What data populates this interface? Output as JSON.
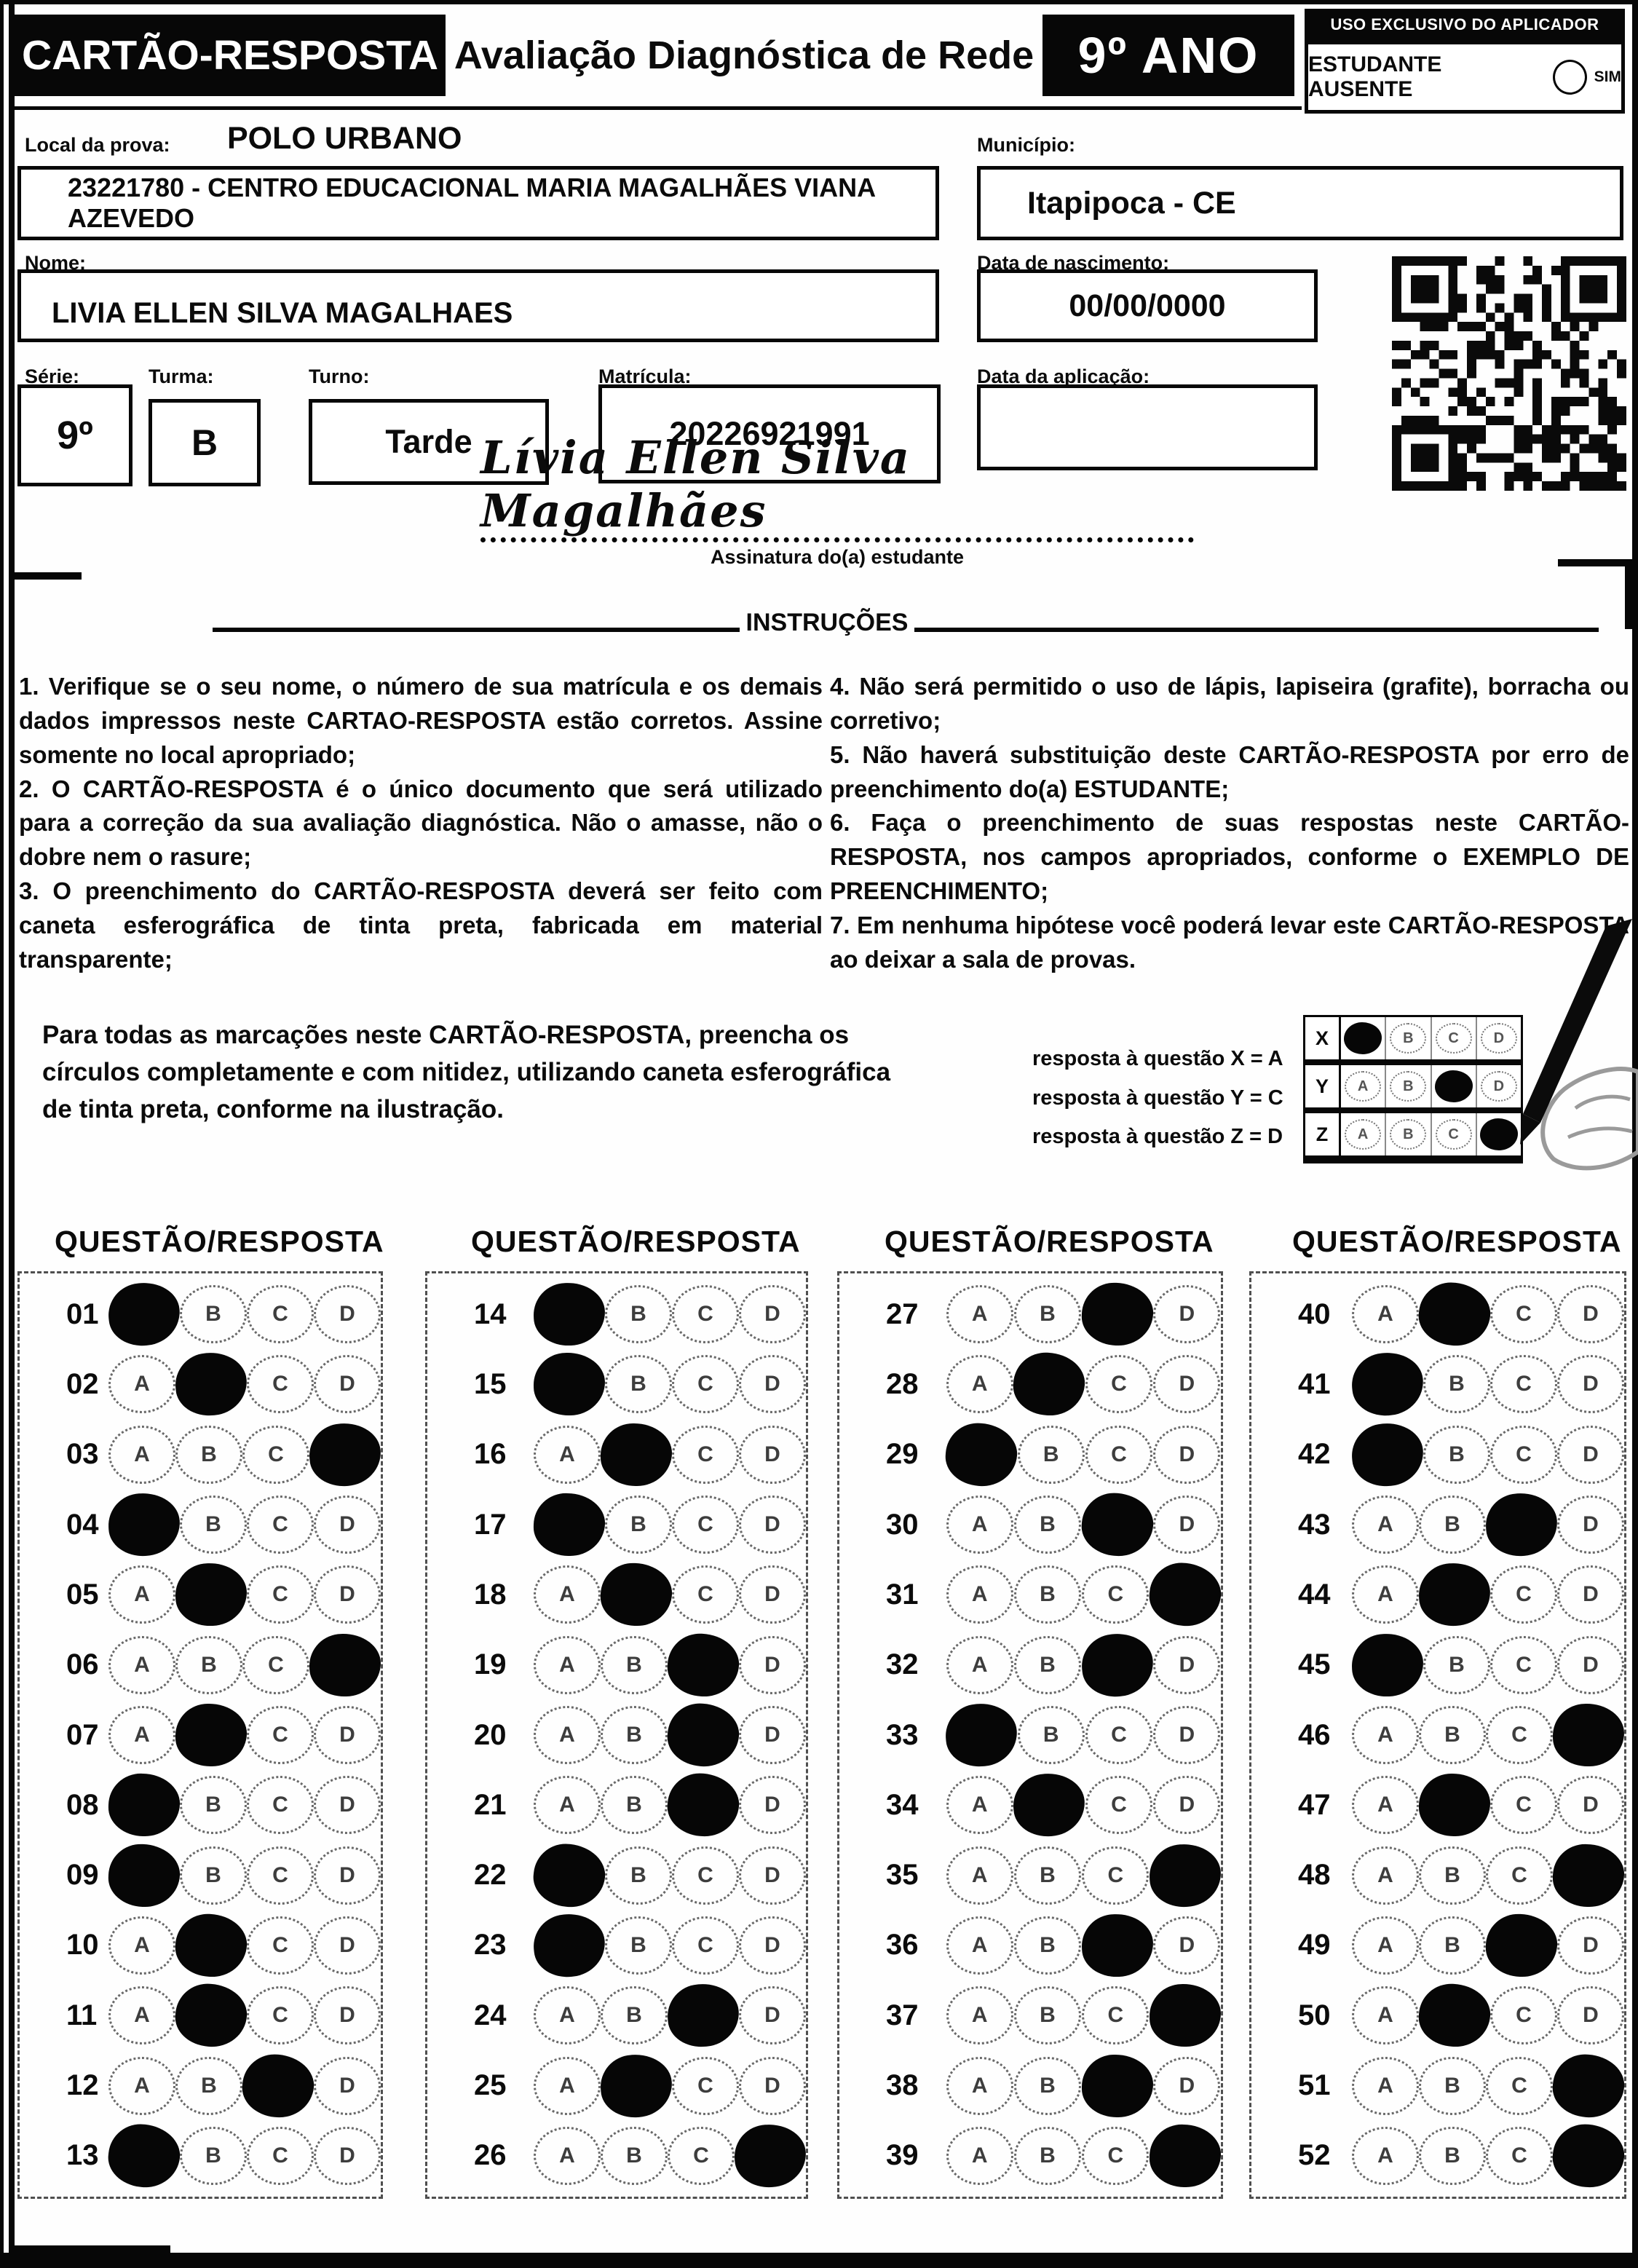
{
  "header": {
    "card_title": "CARTÃO-RESPOSTA",
    "exam_title": "Avaliação Diagnóstica de Rede",
    "grade": "9º ANO",
    "aplicador_title": "USO EXCLUSIVO DO APLICADOR",
    "absent_label": "ESTUDANTE AUSENTE",
    "absent_yes": "SIM"
  },
  "fields": {
    "local_label": "Local da prova:",
    "local_value": "POLO URBANO",
    "school_value": "23221780 - CENTRO EDUCACIONAL MARIA MAGALHÃES VIANA AZEVEDO",
    "municipio_label": "Município:",
    "municipio_value": "Itapipoca - CE",
    "nome_label": "Nome:",
    "nome_value": "LIVIA ELLEN SILVA MAGALHAES",
    "nascimento_label": "Data de nascimento:",
    "nascimento_value": "00/00/0000",
    "serie_label": "Série:",
    "serie_value": "9º",
    "turma_label": "Turma:",
    "turma_value": "B",
    "turno_label": "Turno:",
    "turno_value": "Tarde",
    "matricula_label": "Matrícula:",
    "matricula_value": "20226921991",
    "aplicacao_label": "Data da aplicação:",
    "aplicacao_value": ""
  },
  "signature": {
    "name": "Lívia Ellen Silva Magalhães",
    "label": "Assinatura do(a) estudante"
  },
  "instructions": {
    "title": "INSTRUÇÕES",
    "left": [
      "1. Verifique se o seu nome, o número de sua matrícula e os demais dados impressos neste CARTAO-RESPOSTA estão corretos. Assine somente no local apropriado;",
      "2. O CARTÃO-RESPOSTA é o único documento que será utilizado para a correção da sua avaliação diagnóstica. Não o amasse, não o dobre nem o rasure;",
      "3. O preenchimento do CARTÃO-RESPOSTA deverá ser feito com caneta esferográfica de tinta preta, fabricada em material transparente;"
    ],
    "right": [
      "4. Não será permitido o uso de lápis, lapiseira (grafite), borracha ou corretivo;",
      "5. Não haverá substituição deste CARTÃO-RESPOSTA por erro de preenchimento do(a) ESTUDANTE;",
      "6. Faça o preenchimento de suas respostas neste CARTÃO-RESPOSTA, nos campos apropriados, conforme o EXEMPLO DE PREENCHIMENTO;",
      "7. Em nenhuma hipótese você poderá levar este CARTÃO-RESPOSTA ao deixar a sala de provas."
    ]
  },
  "example": {
    "paragraph": "Para todas as marcações neste CARTÃO-RESPOSTA, preencha os círculos completamente e com nitidez, utilizando caneta esferográfica de tinta preta, conforme na ilustração.",
    "legend": [
      "resposta à questão X = A",
      "resposta à questão Y = C",
      "resposta à questão Z = D"
    ],
    "options": [
      "A",
      "B",
      "C",
      "D"
    ],
    "rows": [
      {
        "label": "X",
        "filled": "A"
      },
      {
        "label": "Y",
        "filled": "C"
      },
      {
        "label": "Z",
        "filled": "D"
      }
    ]
  },
  "answers": {
    "column_header": "QUESTÃO/RESPOSTA",
    "options": [
      "A",
      "B",
      "C",
      "D"
    ],
    "columns": [
      [
        {
          "q": "01",
          "a": "A"
        },
        {
          "q": "02",
          "a": "B"
        },
        {
          "q": "03",
          "a": "D"
        },
        {
          "q": "04",
          "a": "A"
        },
        {
          "q": "05",
          "a": "B"
        },
        {
          "q": "06",
          "a": "D"
        },
        {
          "q": "07",
          "a": "B"
        },
        {
          "q": "08",
          "a": "A"
        },
        {
          "q": "09",
          "a": "A"
        },
        {
          "q": "10",
          "a": "B"
        },
        {
          "q": "11",
          "a": "B"
        },
        {
          "q": "12",
          "a": "C"
        },
        {
          "q": "13",
          "a": "A"
        }
      ],
      [
        {
          "q": "14",
          "a": "A"
        },
        {
          "q": "15",
          "a": "A"
        },
        {
          "q": "16",
          "a": "B"
        },
        {
          "q": "17",
          "a": "A"
        },
        {
          "q": "18",
          "a": "B"
        },
        {
          "q": "19",
          "a": "C"
        },
        {
          "q": "20",
          "a": "C"
        },
        {
          "q": "21",
          "a": "C"
        },
        {
          "q": "22",
          "a": "A"
        },
        {
          "q": "23",
          "a": "A"
        },
        {
          "q": "24",
          "a": "C"
        },
        {
          "q": "25",
          "a": "B"
        },
        {
          "q": "26",
          "a": "D"
        }
      ],
      [
        {
          "q": "27",
          "a": "C"
        },
        {
          "q": "28",
          "a": "B"
        },
        {
          "q": "29",
          "a": "A"
        },
        {
          "q": "30",
          "a": "C"
        },
        {
          "q": "31",
          "a": "D"
        },
        {
          "q": "32",
          "a": "C"
        },
        {
          "q": "33",
          "a": "A"
        },
        {
          "q": "34",
          "a": "B"
        },
        {
          "q": "35",
          "a": "D"
        },
        {
          "q": "36",
          "a": "C"
        },
        {
          "q": "37",
          "a": "D"
        },
        {
          "q": "38",
          "a": "C"
        },
        {
          "q": "39",
          "a": "D"
        }
      ],
      [
        {
          "q": "40",
          "a": "B"
        },
        {
          "q": "41",
          "a": "A"
        },
        {
          "q": "42",
          "a": "A"
        },
        {
          "q": "43",
          "a": "C"
        },
        {
          "q": "44",
          "a": "B"
        },
        {
          "q": "45",
          "a": "A"
        },
        {
          "q": "46",
          "a": "D"
        },
        {
          "q": "47",
          "a": "B"
        },
        {
          "q": "48",
          "a": "D"
        },
        {
          "q": "49",
          "a": "C"
        },
        {
          "q": "50",
          "a": "B"
        },
        {
          "q": "51",
          "a": "D"
        },
        {
          "q": "52",
          "a": "D"
        }
      ]
    ]
  }
}
